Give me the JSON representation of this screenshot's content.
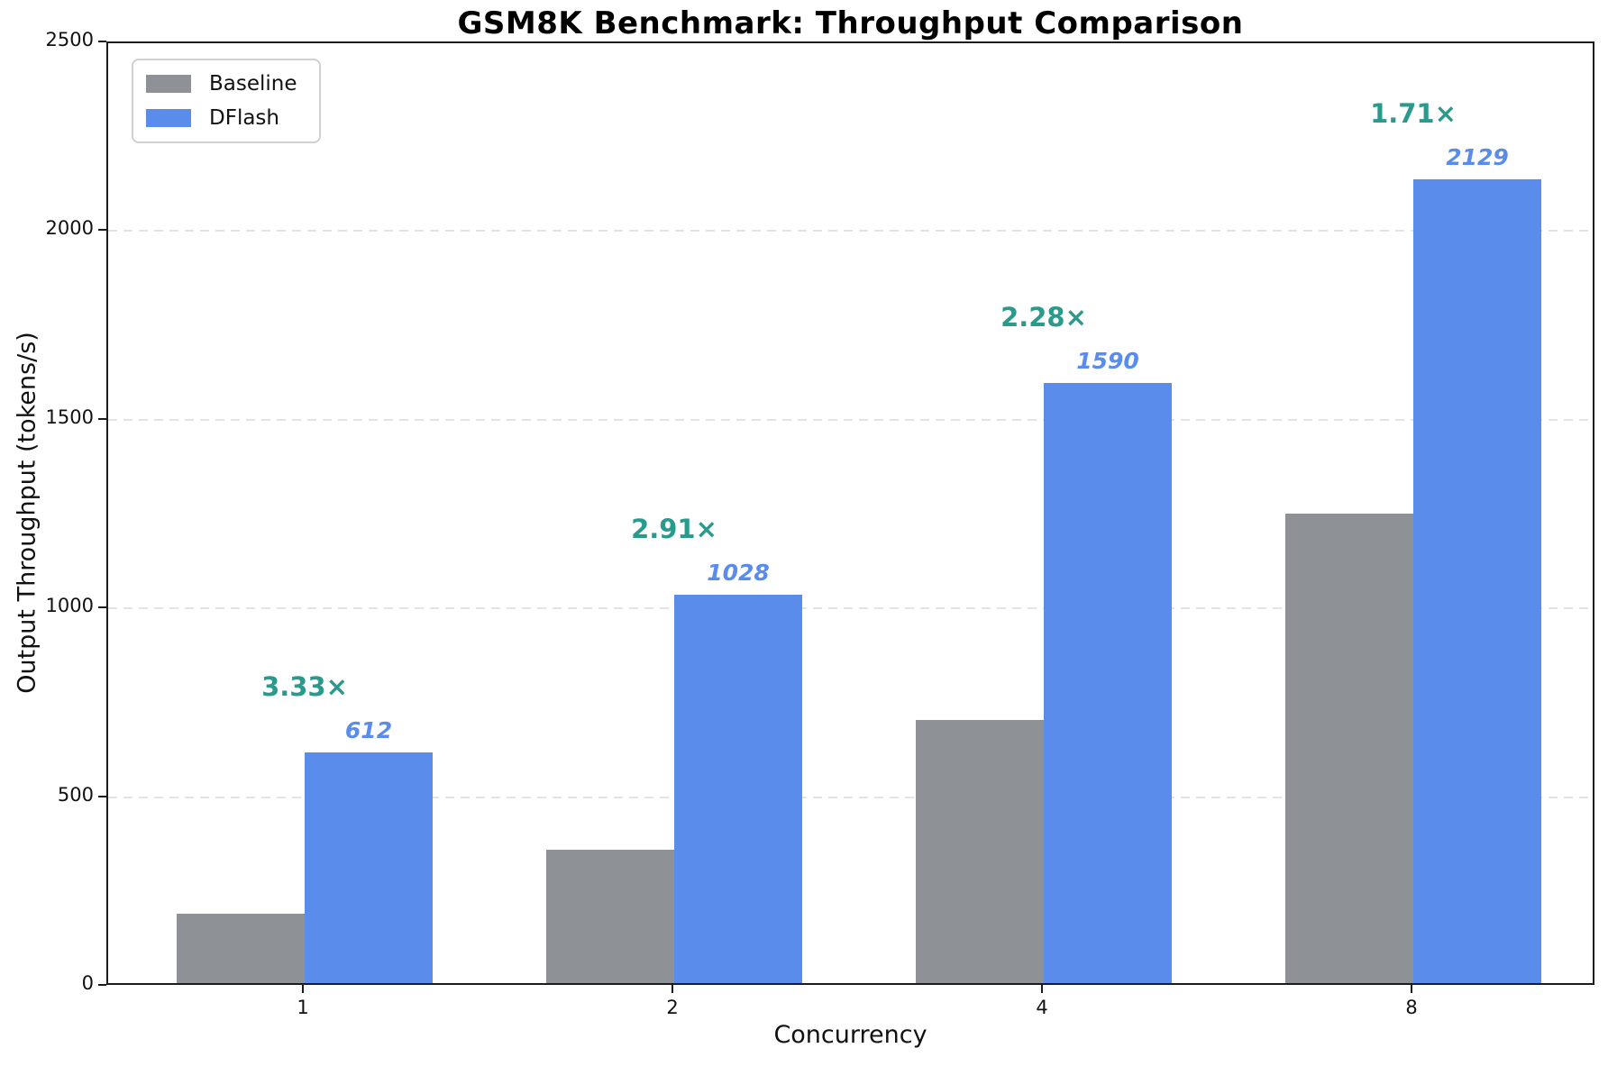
{
  "chart_data": {
    "type": "bar",
    "title": "GSM8K Benchmark: Throughput Comparison",
    "xlabel": "Concurrency",
    "ylabel": "Output Throughput (tokens/s)",
    "categories": [
      "1",
      "2",
      "4",
      "8"
    ],
    "series": [
      {
        "name": "Baseline",
        "color": "#8E9196",
        "values": [
          184,
          353,
          697,
          1245
        ]
      },
      {
        "name": "DFlash",
        "color": "#5A8CEB",
        "values": [
          612,
          1028,
          1590,
          2129
        ]
      }
    ],
    "dflash_value_labels": [
      "612",
      "1028",
      "1590",
      "2129"
    ],
    "speedup_labels": [
      "3.33×",
      "2.91×",
      "2.28×",
      "1.71×"
    ],
    "speedup_color": "#2A9A8C",
    "value_label_color": "#5A8CEB",
    "ylim": [
      0,
      2500
    ],
    "yticks": [
      0,
      500,
      1000,
      1500,
      2000,
      2500
    ],
    "grid": "horizontal-dashed",
    "legend_position": "upper-left",
    "spine_color": "#1c1c1c",
    "grid_color": "#e3e3e3"
  }
}
